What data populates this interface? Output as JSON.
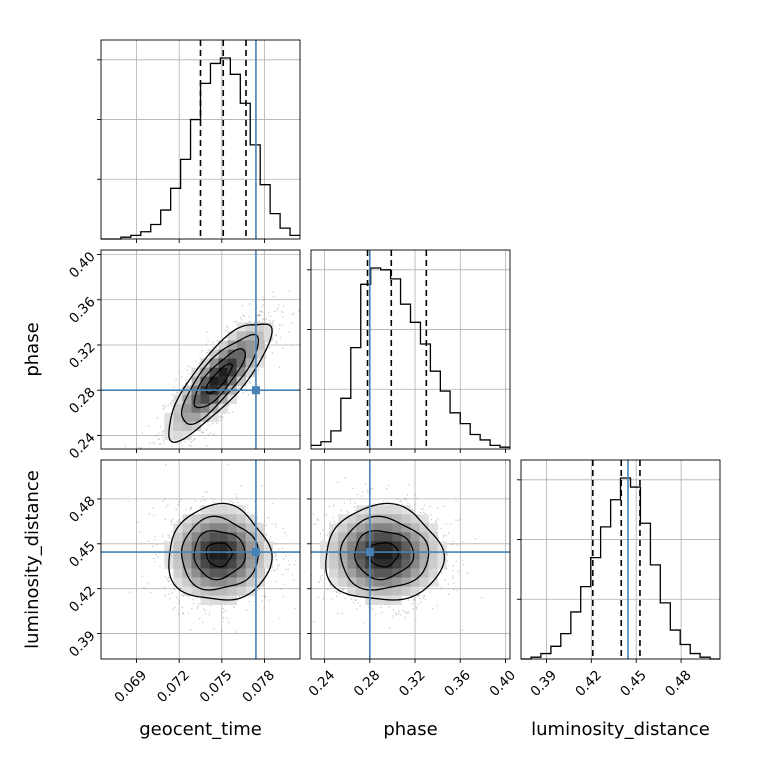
{
  "chart_data": {
    "type": "corner",
    "colors": {
      "truth": "#4682b4",
      "lines": "#000000",
      "samples": "#808080",
      "grid": "#b0b0b0"
    },
    "parameters": [
      {
        "name": "geocent_time",
        "label": "geocent_time",
        "range": [
          0.0665,
          0.0805
        ],
        "ticks": [
          0.069,
          0.072,
          0.075,
          0.078
        ],
        "tick_labels": [
          "0.069",
          "0.072",
          "0.075",
          "0.078"
        ],
        "truth": 0.0774,
        "quantiles": [
          0.0735,
          0.0751,
          0.0767
        ]
      },
      {
        "name": "phase",
        "label": "phase",
        "range": [
          0.228,
          0.404
        ],
        "ticks": [
          0.24,
          0.28,
          0.32,
          0.36,
          0.4
        ],
        "tick_labels": [
          "0.24",
          "0.28",
          "0.32",
          "0.36",
          "0.40"
        ],
        "truth": 0.28,
        "quantiles": [
          0.278,
          0.299,
          0.33
        ]
      },
      {
        "name": "luminosity_distance",
        "label": "luminosity_distance",
        "range": [
          0.373,
          0.506
        ],
        "ticks": [
          0.39,
          0.42,
          0.45,
          0.48
        ],
        "tick_labels": [
          "0.39",
          "0.42",
          "0.45",
          "0.48"
        ],
        "truth": 0.4445,
        "quantiles": [
          0.421,
          0.44,
          0.4525
        ]
      }
    ],
    "histograms": [
      {
        "param": "geocent_time",
        "bins": [
          0.0665,
          0.0672,
          0.0679,
          0.0686,
          0.0693,
          0.07,
          0.0707,
          0.0714,
          0.0721,
          0.0728,
          0.0735,
          0.0742,
          0.0749,
          0.0756,
          0.0763,
          0.077,
          0.0777,
          0.0784,
          0.0791,
          0.0798,
          0.0805
        ],
        "counts": [
          0,
          0,
          1,
          2,
          4,
          8,
          16,
          28,
          44,
          66,
          86,
          97,
          100,
          91,
          75,
          52,
          30,
          14,
          6,
          2
        ]
      },
      {
        "param": "phase",
        "bins": [
          0.228,
          0.2368,
          0.2456,
          0.2544,
          0.2632,
          0.272,
          0.2808,
          0.2896,
          0.2984,
          0.3072,
          0.316,
          0.3248,
          0.3336,
          0.3424,
          0.351,
          0.36,
          0.3688,
          0.3776,
          0.3864,
          0.3952,
          0.404
        ],
        "counts": [
          2,
          4,
          10,
          28,
          56,
          91,
          100,
          99,
          94,
          80,
          70,
          58,
          43,
          32,
          20,
          14,
          8,
          5,
          2,
          1
        ]
      },
      {
        "param": "luminosity_distance",
        "bins": [
          0.373,
          0.3797,
          0.3863,
          0.393,
          0.3996,
          0.4063,
          0.4129,
          0.4196,
          0.4262,
          0.4329,
          0.4395,
          0.4462,
          0.4528,
          0.4595,
          0.4661,
          0.4728,
          0.4794,
          0.4861,
          0.4927,
          0.4994,
          0.506
        ],
        "counts": [
          0,
          1,
          3,
          7,
          14,
          26,
          40,
          56,
          73,
          88,
          100,
          95,
          75,
          52,
          31,
          16,
          8,
          3,
          1,
          0
        ]
      }
    ],
    "pairs": [
      {
        "x": "geocent_time",
        "y": "phase",
        "mean": [
          0.0748,
          0.29
        ],
        "std": [
          0.0018,
          0.026
        ],
        "corr": 0.82
      },
      {
        "x": "geocent_time",
        "y": "luminosity_distance",
        "mean": [
          0.0748,
          0.443
        ],
        "std": [
          0.0018,
          0.016
        ],
        "corr": 0.0
      },
      {
        "x": "phase",
        "y": "luminosity_distance",
        "mean": [
          0.292,
          0.443
        ],
        "std": [
          0.026,
          0.016
        ],
        "corr": 0.0
      }
    ],
    "contour_sigma_levels": [
      0.5,
      1.0,
      1.5,
      2.0
    ]
  }
}
